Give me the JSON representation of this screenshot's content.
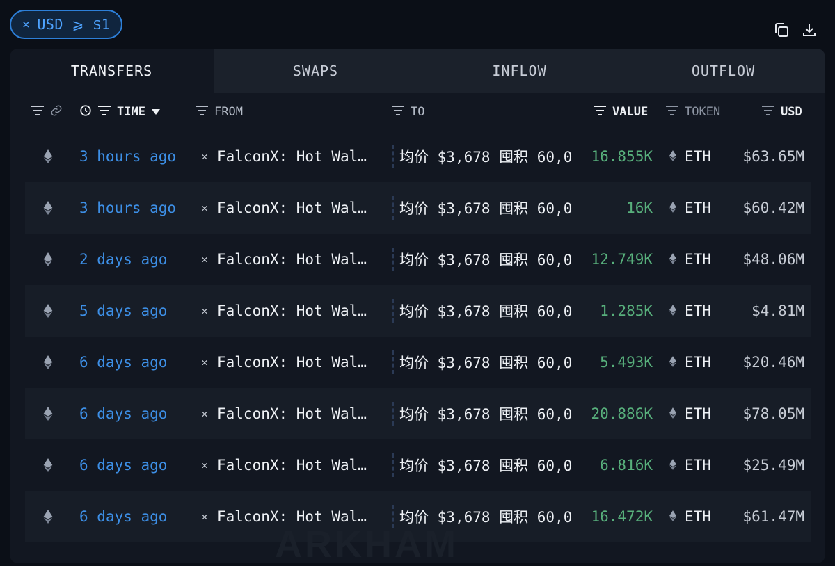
{
  "filter": {
    "close": "×",
    "label": "USD ⩾ $1"
  },
  "tabs": [
    "TRANSFERS",
    "SWAPS",
    "INFLOW",
    "OUTFLOW"
  ],
  "headers": {
    "time": "TIME",
    "from": "FROM",
    "to": "TO",
    "value": "VALUE",
    "token": "TOKEN",
    "usd": "USD"
  },
  "rows": [
    {
      "time": "3 hours ago",
      "from": "FalconX: Hot Wal…",
      "to": "均价 $3,678 囤积 60,0",
      "value": "16.855K",
      "token": "ETH",
      "usd": "$63.65M"
    },
    {
      "time": "3 hours ago",
      "from": "FalconX: Hot Wal…",
      "to": "均价 $3,678 囤积 60,0",
      "value": "16K",
      "token": "ETH",
      "usd": "$60.42M"
    },
    {
      "time": "2 days ago",
      "from": "FalconX: Hot Wal…",
      "to": "均价 $3,678 囤积 60,0",
      "value": "12.749K",
      "token": "ETH",
      "usd": "$48.06M"
    },
    {
      "time": "5 days ago",
      "from": "FalconX: Hot Wal…",
      "to": "均价 $3,678 囤积 60,0",
      "value": "1.285K",
      "token": "ETH",
      "usd": "$4.81M"
    },
    {
      "time": "6 days ago",
      "from": "FalconX: Hot Wal…",
      "to": "均价 $3,678 囤积 60,0",
      "value": "5.493K",
      "token": "ETH",
      "usd": "$20.46M"
    },
    {
      "time": "6 days ago",
      "from": "FalconX: Hot Wal…",
      "to": "均价 $3,678 囤积 60,0",
      "value": "20.886K",
      "token": "ETH",
      "usd": "$78.05M"
    },
    {
      "time": "6 days ago",
      "from": "FalconX: Hot Wal…",
      "to": "均价 $3,678 囤积 60,0",
      "value": "6.816K",
      "token": "ETH",
      "usd": "$25.49M"
    },
    {
      "time": "6 days ago",
      "from": "FalconX: Hot Wal…",
      "to": "均价 $3,678 囤积 60,0",
      "value": "16.472K",
      "token": "ETH",
      "usd": "$61.47M"
    }
  ],
  "watermark": "ARKHAM",
  "colors": {
    "accent": "#3d8fe6",
    "value": "#58b07c",
    "background": "#0b0f17",
    "panel": "#121721"
  },
  "icons": {
    "chain": "ethereum-icon",
    "from": "falconx-icon",
    "copy": "copy-icon",
    "download": "download-icon"
  }
}
